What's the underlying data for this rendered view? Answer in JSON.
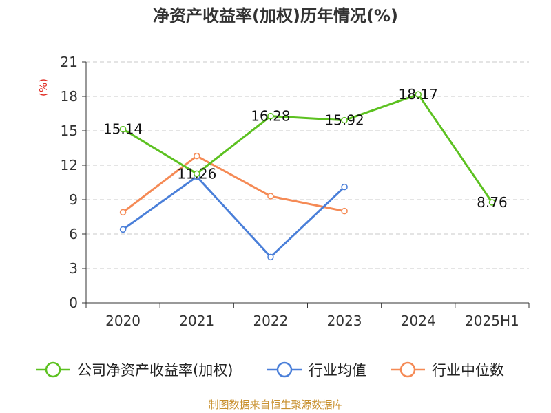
{
  "chart_data": {
    "type": "line",
    "title": "净资产收益率(加权)历年情况(%)",
    "ylabel": "(%)",
    "xlabel": "",
    "categories": [
      "2020",
      "2021",
      "2022",
      "2023",
      "2024",
      "2025H1"
    ],
    "ylim": [
      0,
      21
    ],
    "yticks": [
      0,
      3,
      6,
      9,
      12,
      15,
      18,
      21
    ],
    "grid": true,
    "legend_position": "bottom",
    "series": [
      {
        "name": "公司净资产收益率(加权)",
        "color": "#5cc120",
        "values": [
          15.14,
          11.26,
          16.28,
          15.92,
          18.17,
          8.76
        ],
        "labels": [
          "15.14",
          "11.26",
          "16.28",
          "15.92",
          "18.17",
          "8.76"
        ]
      },
      {
        "name": "行业均值",
        "color": "#4a7fd9",
        "values": [
          6.4,
          11.0,
          4.0,
          10.1,
          null,
          null
        ]
      },
      {
        "name": "行业中位数",
        "color": "#f58a55",
        "values": [
          7.9,
          12.8,
          9.3,
          8.0,
          null,
          null
        ]
      }
    ],
    "source": "制图数据来自恒生聚源数据库"
  }
}
